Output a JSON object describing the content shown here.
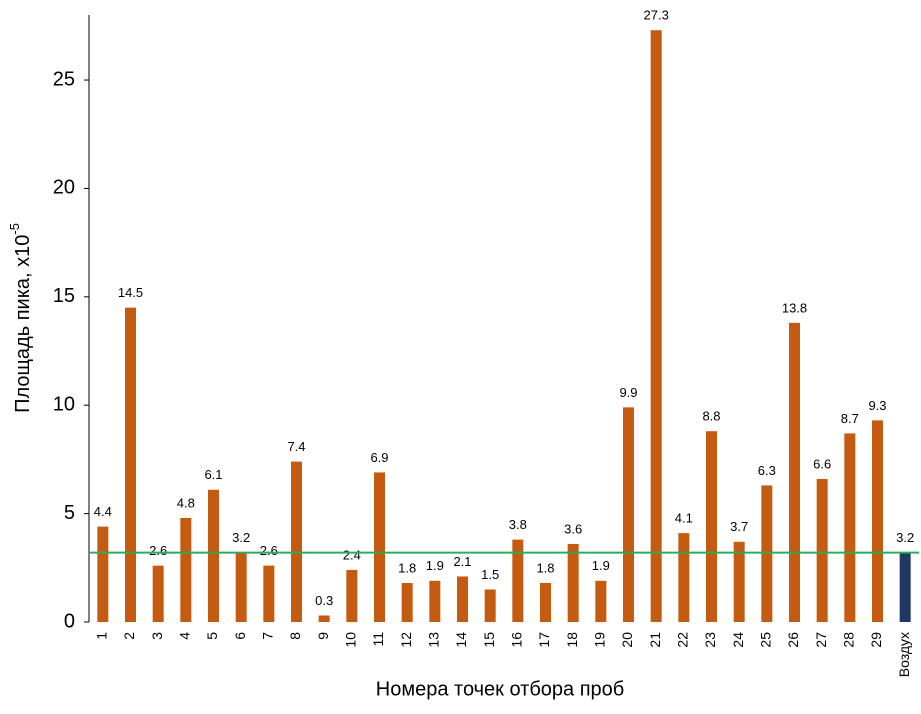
{
  "chart_data": {
    "type": "bar",
    "xlabel": "Номера точек отбора проб",
    "ylabel": "Площадь пика, x10",
    "ylabel_superscript": "-5",
    "categories": [
      "1",
      "2",
      "3",
      "4",
      "5",
      "6",
      "7",
      "8",
      "9",
      "10",
      "11",
      "12",
      "13",
      "14",
      "15",
      "16",
      "17",
      "18",
      "19",
      "20",
      "21",
      "22",
      "23",
      "24",
      "25",
      "26",
      "27",
      "28",
      "29",
      "Воздух"
    ],
    "values": [
      4.4,
      14.5,
      2.6,
      4.8,
      6.1,
      3.2,
      2.6,
      7.4,
      0.3,
      2.4,
      6.9,
      1.8,
      1.9,
      2.1,
      1.5,
      3.8,
      1.8,
      3.6,
      1.9,
      9.9,
      27.3,
      4.1,
      8.8,
      3.7,
      6.3,
      13.8,
      6.6,
      8.7,
      9.3,
      3.2
    ],
    "colors": [
      "#c55a11",
      "#c55a11",
      "#c55a11",
      "#c55a11",
      "#c55a11",
      "#c55a11",
      "#c55a11",
      "#c55a11",
      "#c55a11",
      "#c55a11",
      "#c55a11",
      "#c55a11",
      "#c55a11",
      "#c55a11",
      "#c55a11",
      "#c55a11",
      "#c55a11",
      "#c55a11",
      "#c55a11",
      "#c55a11",
      "#c55a11",
      "#c55a11",
      "#c55a11",
      "#c55a11",
      "#c55a11",
      "#c55a11",
      "#c55a11",
      "#c55a11",
      "#c55a11",
      "#1f3864"
    ],
    "reference_line": {
      "value": 3.2,
      "color": "#2eaa5a"
    },
    "ylim": [
      0,
      28
    ],
    "yticks": [
      0,
      5,
      10,
      15,
      20,
      25
    ],
    "grid": false
  }
}
